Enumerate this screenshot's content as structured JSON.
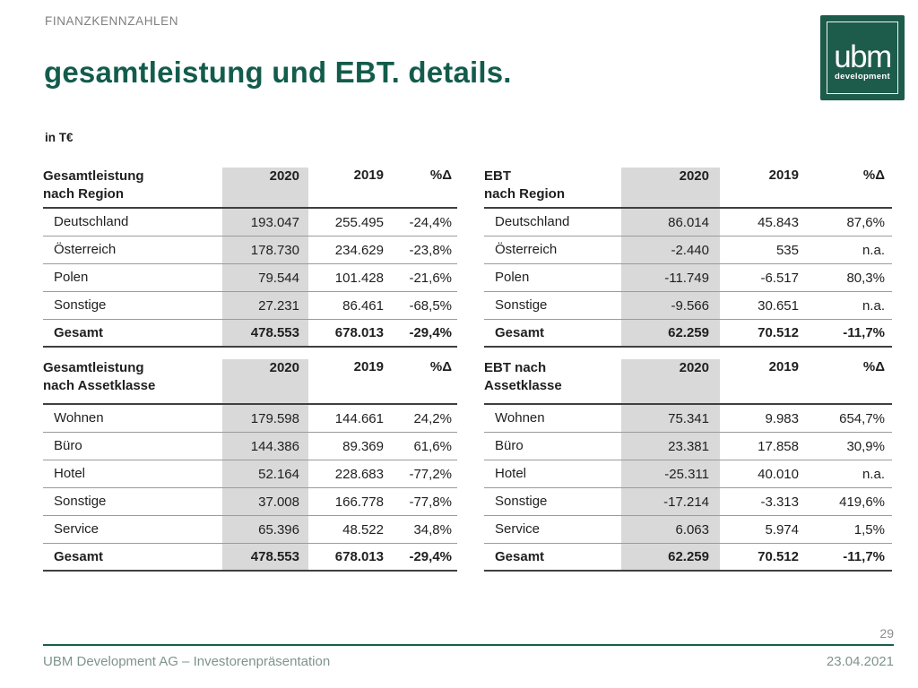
{
  "header": {
    "eyebrow": "FINANZKENNZAHLEN",
    "title": "gesamtleistung und EBT. details.",
    "unit": "in T€"
  },
  "logo": {
    "text": "ubm",
    "subtext": "development",
    "background_color": "#1d5b4b"
  },
  "colors": {
    "brand_green": "#135c4c",
    "highlight_column_gray": "#d9d9d9",
    "row_line_gray": "#9b9b9b",
    "strong_line": "#3f3f3f",
    "eyebrow_gray": "#7f7f7f",
    "footer_text": "#7e948d"
  },
  "tables": [
    {
      "id": "gesamtleistung-nach-region",
      "title_lines": [
        "Gesamtleistung",
        "nach Region"
      ],
      "columns": [
        "2020",
        "2019",
        "%Δ"
      ],
      "rows": [
        {
          "label": "Deutschland",
          "values": [
            "193.047",
            "255.495",
            "-24,4%"
          ],
          "total": false
        },
        {
          "label": "Österreich",
          "values": [
            "178.730",
            "234.629",
            "-23,8%"
          ],
          "total": false
        },
        {
          "label": "Polen",
          "values": [
            "79.544",
            "101.428",
            "-21,6%"
          ],
          "total": false
        },
        {
          "label": "Sonstige",
          "values": [
            "27.231",
            "86.461",
            "-68,5%"
          ],
          "total": false
        },
        {
          "label": "Gesamt",
          "values": [
            "478.553",
            "678.013",
            "-29,4%"
          ],
          "total": true
        }
      ]
    },
    {
      "id": "ebt-nach-region",
      "title_lines": [
        "EBT",
        "nach Region"
      ],
      "columns": [
        "2020",
        "2019",
        "%Δ"
      ],
      "rows": [
        {
          "label": "Deutschland",
          "values": [
            "86.014",
            "45.843",
            "87,6%"
          ],
          "total": false
        },
        {
          "label": "Österreich",
          "values": [
            "-2.440",
            "535",
            "n.a."
          ],
          "total": false
        },
        {
          "label": "Polen",
          "values": [
            "-11.749",
            "-6.517",
            "80,3%"
          ],
          "total": false
        },
        {
          "label": "Sonstige",
          "values": [
            "-9.566",
            "30.651",
            "n.a."
          ],
          "total": false
        },
        {
          "label": "Gesamt",
          "values": [
            "62.259",
            "70.512",
            "-11,7%"
          ],
          "total": true
        }
      ]
    },
    {
      "id": "gesamtleistung-nach-assetklasse",
      "title_lines": [
        "Gesamtleistung",
        "nach Assetklasse"
      ],
      "columns": [
        "2020",
        "2019",
        "%Δ"
      ],
      "rows": [
        {
          "label": "Wohnen",
          "values": [
            "179.598",
            "144.661",
            "24,2%"
          ],
          "total": false
        },
        {
          "label": "Büro",
          "values": [
            "144.386",
            "89.369",
            "61,6%"
          ],
          "total": false
        },
        {
          "label": "Hotel",
          "values": [
            "52.164",
            "228.683",
            "-77,2%"
          ],
          "total": false
        },
        {
          "label": "Sonstige",
          "values": [
            "37.008",
            "166.778",
            "-77,8%"
          ],
          "total": false
        },
        {
          "label": "Service",
          "values": [
            "65.396",
            "48.522",
            "34,8%"
          ],
          "total": false
        },
        {
          "label": "Gesamt",
          "values": [
            "478.553",
            "678.013",
            "-29,4%"
          ],
          "total": true
        }
      ]
    },
    {
      "id": "ebt-nach-assetklasse",
      "title_lines": [
        "EBT nach",
        "Assetklasse"
      ],
      "columns": [
        "2020",
        "2019",
        "%Δ"
      ],
      "rows": [
        {
          "label": "Wohnen",
          "values": [
            "75.341",
            "9.983",
            "654,7%"
          ],
          "total": false
        },
        {
          "label": "Büro",
          "values": [
            "23.381",
            "17.858",
            "30,9%"
          ],
          "total": false
        },
        {
          "label": "Hotel",
          "values": [
            "-25.311",
            "40.010",
            "n.a."
          ],
          "total": false
        },
        {
          "label": "Sonstige",
          "values": [
            "-17.214",
            "-3.313",
            "419,6%"
          ],
          "total": false
        },
        {
          "label": "Service",
          "values": [
            "6.063",
            "5.974",
            "1,5%"
          ],
          "total": false
        },
        {
          "label": "Gesamt",
          "values": [
            "62.259",
            "70.512",
            "-11,7%"
          ],
          "total": true
        }
      ]
    }
  ],
  "footer": {
    "page_number": "29",
    "left_text": "UBM Development AG – Investorenpräsentation",
    "right_text": "23.04.2021"
  }
}
